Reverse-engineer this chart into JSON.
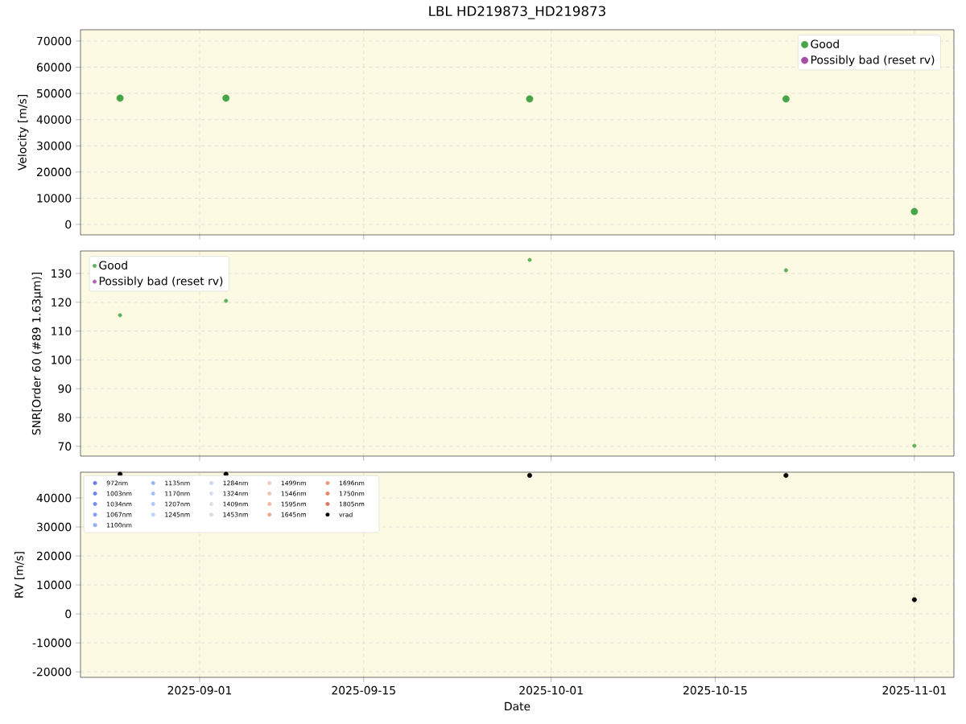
{
  "chart_data": [
    {
      "type": "scatter",
      "title": "LBL HD219873_HD219873",
      "ylabel": "Velocity [m/s]",
      "x": [
        "2025-08-25T05:00",
        "2025-09-03T06:00",
        "2025-09-29T04:00",
        "2025-10-21T01:00",
        "2025-11-01T00:00"
      ],
      "xlim": [
        "2025-08-21T20:00",
        "2025-11-04T09:00"
      ],
      "xticks": [
        "2025-09-01",
        "2025-09-15",
        "2025-10-01",
        "2025-10-15",
        "2025-11-01"
      ],
      "ylim": [
        -4000,
        74300
      ],
      "yticks": [
        0,
        10000,
        20000,
        30000,
        40000,
        50000,
        60000,
        70000
      ],
      "tick_labels": "y",
      "grid": true,
      "legend": "top right",
      "series": [
        {
          "name": "Good",
          "color": "#47a447",
          "values": [
            48200,
            48200,
            47900,
            47900,
            4900
          ]
        },
        {
          "name": "Possibly bad (reset rv)",
          "color": "#a64ca6",
          "values": [
            null,
            null,
            null,
            null,
            null
          ]
        }
      ]
    },
    {
      "type": "scatter",
      "ylabel": "SNR[Order 60 (#89 1.63µm)]",
      "x": [
        "2025-08-25T05:00",
        "2025-09-03T06:00",
        "2025-09-29T04:00",
        "2025-10-21T01:00",
        "2025-11-01T00:00"
      ],
      "xlim": [
        "2025-08-21T20:00",
        "2025-11-04T09:00"
      ],
      "xticks": [
        "2025-09-01",
        "2025-09-15",
        "2025-10-01",
        "2025-10-15",
        "2025-11-01"
      ],
      "ylim": [
        66.6,
        137.8
      ],
      "yticks": [
        70,
        80,
        90,
        100,
        110,
        120,
        130
      ],
      "tick_labels": "y",
      "grid": true,
      "legend": "top left",
      "series": [
        {
          "name": "Good",
          "color": "#5cb05c",
          "values": [
            115.5,
            120.5,
            134.7,
            131.1,
            70.2
          ]
        },
        {
          "name": "Possibly bad (reset rv)",
          "color": "#b05cb0",
          "values": [
            null,
            null,
            null,
            null,
            null
          ]
        }
      ]
    },
    {
      "type": "scatter",
      "xlabel": "Date",
      "ylabel": "RV [m/s]",
      "x": [
        "2025-08-25T05:00",
        "2025-09-03T06:00",
        "2025-09-29T04:00",
        "2025-10-21T01:00",
        "2025-11-01T00:00"
      ],
      "xlim": [
        "2025-08-21T20:00",
        "2025-11-04T09:00"
      ],
      "xticks": [
        "2025-09-01",
        "2025-09-15",
        "2025-10-01",
        "2025-10-15",
        "2025-11-01"
      ],
      "ylim": [
        -21900,
        48900
      ],
      "yticks": [
        -20000,
        -10000,
        0,
        10000,
        20000,
        30000,
        40000
      ],
      "grid": true,
      "legend": "top left",
      "series": [
        {
          "name": "972nm",
          "color": "#6b7fe0",
          "values": [
            null,
            null,
            null,
            null,
            null
          ]
        },
        {
          "name": "1003nm",
          "color": "#7085e6",
          "values": [
            null,
            null,
            null,
            null,
            null
          ]
        },
        {
          "name": "1034nm",
          "color": "#7a90ec",
          "values": [
            null,
            null,
            null,
            null,
            null
          ]
        },
        {
          "name": "1067nm",
          "color": "#84a0f2",
          "values": [
            null,
            null,
            null,
            null,
            null
          ]
        },
        {
          "name": "1100nm",
          "color": "#90aef7",
          "values": [
            null,
            null,
            null,
            null,
            null
          ]
        },
        {
          "name": "1135nm",
          "color": "#9bb8fa",
          "values": [
            null,
            null,
            null,
            null,
            null
          ]
        },
        {
          "name": "1170nm",
          "color": "#a6c2fb",
          "values": [
            null,
            null,
            null,
            null,
            null
          ]
        },
        {
          "name": "1207nm",
          "color": "#b2cbfb",
          "values": [
            null,
            null,
            null,
            null,
            null
          ]
        },
        {
          "name": "1245nm",
          "color": "#bed3f8",
          "values": [
            null,
            null,
            null,
            null,
            null
          ]
        },
        {
          "name": "1284nm",
          "color": "#c9d9f2",
          "values": [
            null,
            null,
            null,
            null,
            null
          ]
        },
        {
          "name": "1324nm",
          "color": "#d4dfee",
          "values": [
            null,
            null,
            null,
            null,
            null
          ]
        },
        {
          "name": "1409nm",
          "color": "#dedede",
          "values": [
            null,
            null,
            null,
            null,
            null
          ]
        },
        {
          "name": "1453nm",
          "color": "#e8d8d2",
          "values": [
            null,
            null,
            null,
            null,
            null
          ]
        },
        {
          "name": "1499nm",
          "color": "#efd0c2",
          "values": [
            null,
            null,
            null,
            null,
            null
          ]
        },
        {
          "name": "1546nm",
          "color": "#f3c5b0",
          "values": [
            null,
            null,
            null,
            null,
            null
          ]
        },
        {
          "name": "1595nm",
          "color": "#f4b89c",
          "values": [
            null,
            null,
            null,
            null,
            null
          ]
        },
        {
          "name": "1645nm",
          "color": "#f2a88a",
          "values": [
            null,
            null,
            null,
            null,
            null
          ]
        },
        {
          "name": "1696nm",
          "color": "#ee9a7a",
          "values": [
            null,
            null,
            null,
            null,
            null
          ]
        },
        {
          "name": "1750nm",
          "color": "#e8876a",
          "values": [
            null,
            null,
            null,
            null,
            null
          ]
        },
        {
          "name": "1805nm",
          "color": "#e07762",
          "values": [
            null,
            null,
            null,
            null,
            null
          ]
        },
        {
          "name": "vrad",
          "color": "#000000",
          "values": [
            48200,
            48200,
            47800,
            47800,
            4900
          ]
        }
      ]
    }
  ]
}
